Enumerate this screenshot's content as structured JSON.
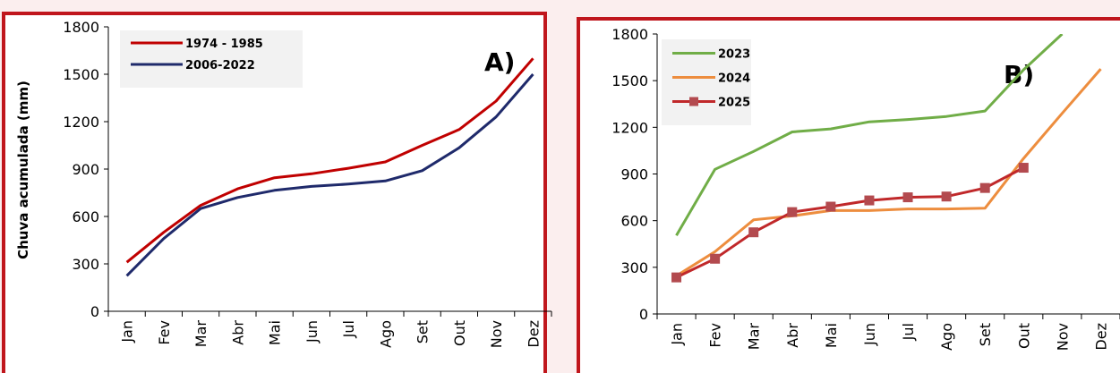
{
  "chart_data": [
    {
      "type": "line",
      "panel_label": "A)",
      "ylabel": "Chuva acumulada (mm)",
      "xlabel": "",
      "categories": [
        "Jan",
        "Fev",
        "Mar",
        "Abr",
        "Mai",
        "Jun",
        "Jul",
        "Ago",
        "Set",
        "Out",
        "Nov",
        "Dez"
      ],
      "ylim": [
        0,
        1800
      ],
      "yticks": [
        0,
        300,
        600,
        900,
        1200,
        1500,
        1800
      ],
      "grid": false,
      "legend": "top-left",
      "series": [
        {
          "name": "1974 - 1985",
          "color": "#c00000",
          "markers": false,
          "values": [
            310,
            500,
            670,
            775,
            845,
            870,
            905,
            945,
            1050,
            1150,
            1330,
            1600
          ]
        },
        {
          "name": "2006-2022",
          "color": "#1f2a6b",
          "markers": false,
          "values": [
            225,
            460,
            650,
            720,
            765,
            790,
            805,
            825,
            890,
            1035,
            1230,
            1500
          ]
        }
      ]
    },
    {
      "type": "line",
      "panel_label": "B)",
      "ylabel": "",
      "xlabel": "",
      "categories": [
        "Jan",
        "Fev",
        "Mar",
        "Abr",
        "Mai",
        "Jun",
        "Jul",
        "Ago",
        "Set",
        "Out",
        "Nov",
        "Dez"
      ],
      "ylim": [
        0,
        1800
      ],
      "yticks": [
        0,
        300,
        600,
        900,
        1200,
        1500,
        1800
      ],
      "grid": false,
      "legend": "top-left",
      "series": [
        {
          "name": "2023",
          "color": "#70ad47",
          "markers": false,
          "values": [
            505,
            930,
            1045,
            1170,
            1190,
            1235,
            1250,
            1270,
            1305,
            1570,
            1800,
            null
          ]
        },
        {
          "name": "2024",
          "color": "#ed8d3e",
          "markers": false,
          "values": [
            245,
            400,
            605,
            630,
            665,
            665,
            675,
            675,
            680,
            1000,
            1290,
            1575
          ]
        },
        {
          "name": "2025",
          "color": "#c0282a",
          "markers": true,
          "values": [
            235,
            355,
            525,
            655,
            690,
            730,
            750,
            755,
            810,
            940,
            null,
            null
          ]
        }
      ]
    }
  ]
}
